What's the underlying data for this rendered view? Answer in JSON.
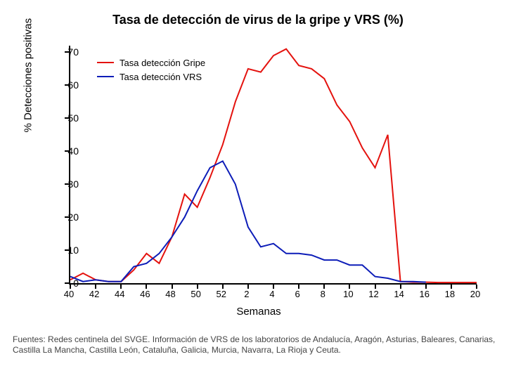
{
  "chart": {
    "type": "line",
    "title": "Tasa de detección de virus de la gripe y VRS (%)",
    "title_fontsize": 18,
    "title_fontweight": "bold",
    "xlabel": "Semanas",
    "ylabel": "% Detecciones positivas",
    "label_fontsize": 15,
    "background_color": "#ffffff",
    "axis_color": "#000000",
    "tick_fontsize": 14,
    "ylim": [
      0,
      72
    ],
    "yticks": [
      0,
      10,
      20,
      30,
      40,
      50,
      60,
      70
    ],
    "xticks_labels": [
      "40",
      "42",
      "44",
      "46",
      "48",
      "50",
      "52",
      "2",
      "4",
      "6",
      "8",
      "10",
      "12",
      "14",
      "16",
      "18",
      "20"
    ],
    "weeks": [
      40,
      41,
      42,
      43,
      44,
      45,
      46,
      47,
      48,
      49,
      50,
      51,
      52,
      1,
      2,
      3,
      4,
      5,
      6,
      7,
      8,
      9,
      10,
      11,
      12,
      13,
      14,
      15,
      16,
      17,
      18,
      19,
      20
    ],
    "legend": {
      "position": "upper-left",
      "items": [
        {
          "label": "Tasa detección Gripe",
          "color": "#e4120e"
        },
        {
          "label": "Tasa detección VRS",
          "color": "#0d1db8"
        }
      ]
    },
    "series": [
      {
        "name": "gripe",
        "color": "#e4120e",
        "line_width": 2,
        "values": [
          1,
          3,
          1,
          0.5,
          0.5,
          4,
          9,
          6,
          14,
          27,
          23,
          32,
          42,
          55,
          65,
          64,
          69,
          71,
          66,
          65,
          62,
          54,
          49,
          41,
          35,
          45,
          0.5,
          0.3,
          0.3,
          0.2,
          0.2,
          0.2,
          0.2
        ]
      },
      {
        "name": "vrs",
        "color": "#0d1db8",
        "line_width": 2,
        "values": [
          2,
          0.5,
          1,
          0.5,
          0.5,
          5,
          6,
          9,
          14,
          20,
          28,
          35,
          37,
          30,
          17,
          11,
          12,
          9,
          9,
          8.5,
          7,
          7,
          5.5,
          5.5,
          2,
          1.5,
          0.5,
          0.5,
          0.3,
          null,
          null,
          null,
          null
        ]
      }
    ]
  },
  "source_note": "Fuentes: Redes centinela del SVGE. Información de VRS de los laboratorios de Andalucía, Aragón, Asturias, Baleares, Canarias, Castilla La Mancha, Castilla León, Cataluña, Galicia, Murcia, Navarra, La Rioja y Ceuta."
}
